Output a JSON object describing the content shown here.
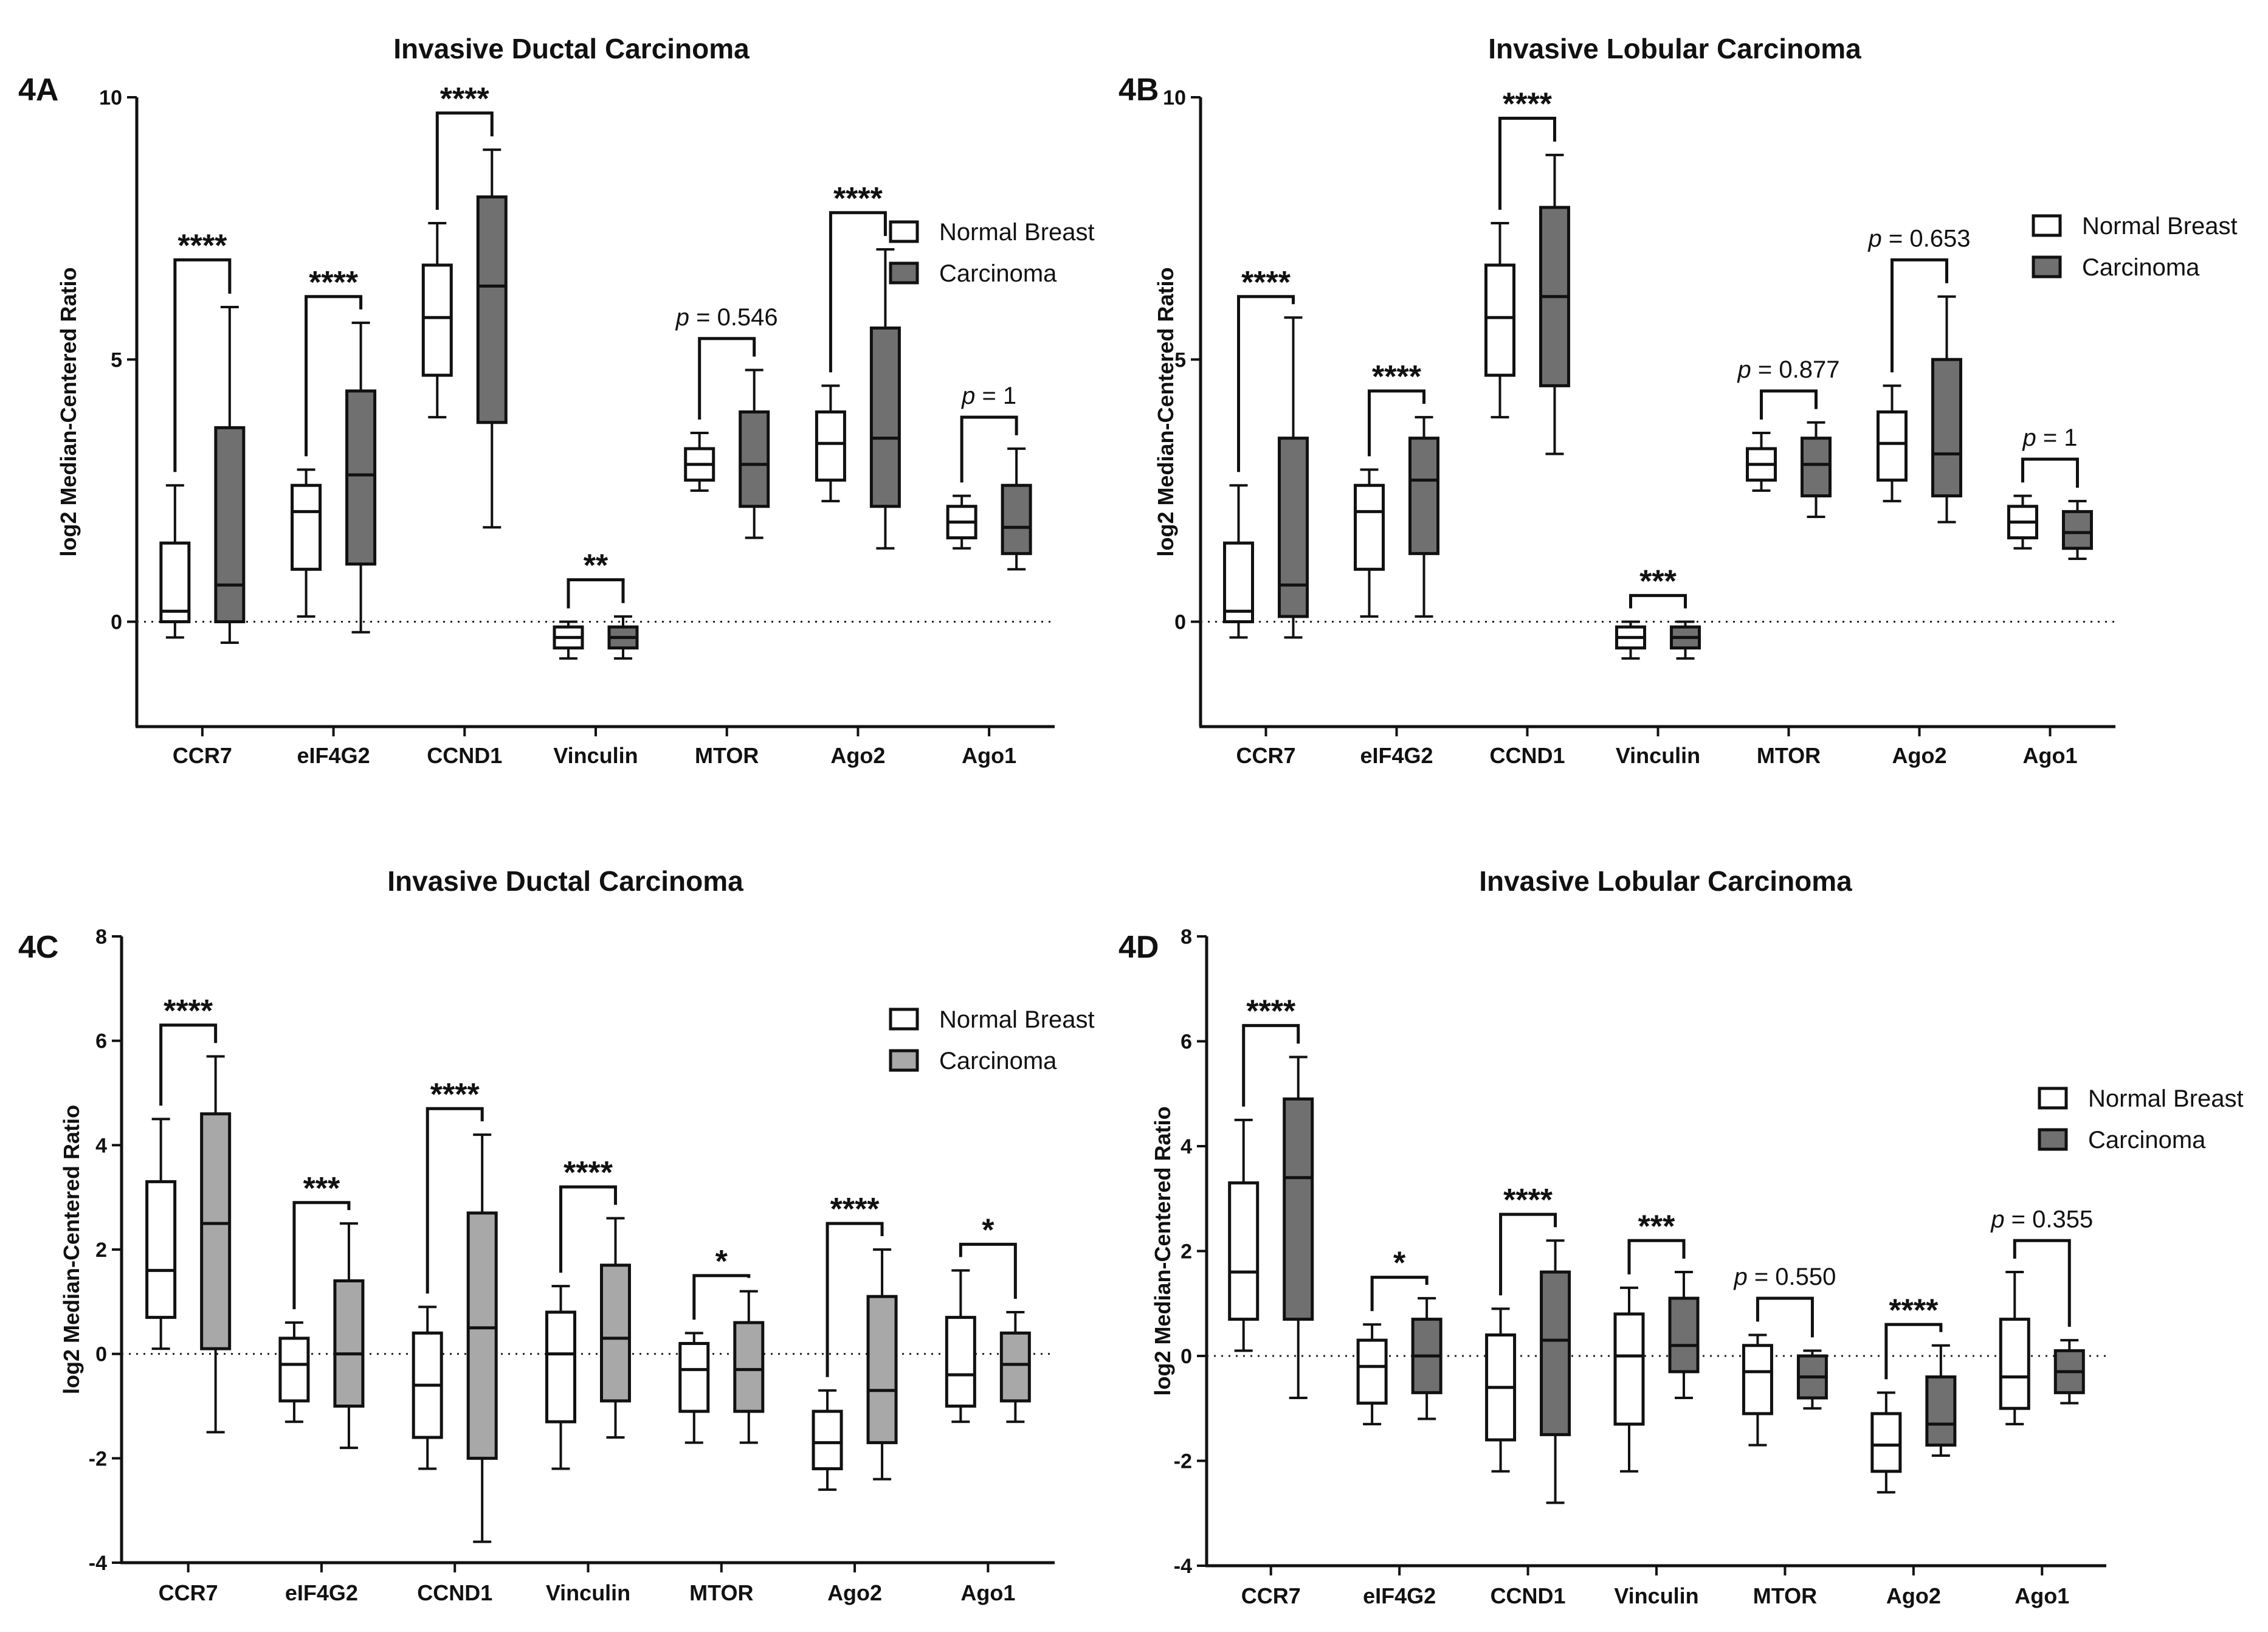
{
  "charts": [
    {
      "id": "4A",
      "label": "4A",
      "chart_data": {
        "type": "box",
        "title": "Invasive Ductal Carcinoma",
        "ylabel": "log2 Median-Centered Ratio",
        "xlabel": "",
        "ylim": [
          -2,
          10
        ],
        "yticks": [
          0,
          5,
          10
        ],
        "zero_line": "dotted",
        "categories": [
          "CCR7",
          "eIF4G2",
          "CCND1",
          "Vinculin",
          "MTOR",
          "Ago2",
          "Ago1"
        ],
        "legend": [
          {
            "name": "Normal Breast",
            "color": "#ffffff"
          },
          {
            "name": "Carcinoma",
            "color": "#707070"
          }
        ],
        "legend_position": "top-right",
        "series": [
          {
            "name": "Normal Breast",
            "color": "#ffffff",
            "boxes": [
              {
                "min": -0.3,
                "q1": 0.0,
                "median": 0.2,
                "q3": 1.5,
                "max": 2.6
              },
              {
                "min": 0.1,
                "q1": 1.0,
                "median": 2.1,
                "q3": 2.6,
                "max": 2.9
              },
              {
                "min": 3.9,
                "q1": 4.7,
                "median": 5.8,
                "q3": 6.8,
                "max": 7.6
              },
              {
                "min": -0.7,
                "q1": -0.5,
                "median": -0.3,
                "q3": -0.1,
                "max": 0.0
              },
              {
                "min": 2.5,
                "q1": 2.7,
                "median": 3.0,
                "q3": 3.3,
                "max": 3.6
              },
              {
                "min": 2.3,
                "q1": 2.7,
                "median": 3.4,
                "q3": 4.0,
                "max": 4.5
              },
              {
                "min": 1.4,
                "q1": 1.6,
                "median": 1.9,
                "q3": 2.2,
                "max": 2.4
              }
            ]
          },
          {
            "name": "Carcinoma",
            "color": "#707070",
            "boxes": [
              {
                "min": -0.4,
                "q1": 0.0,
                "median": 0.7,
                "q3": 3.7,
                "max": 6.0
              },
              {
                "min": -0.2,
                "q1": 1.1,
                "median": 2.8,
                "q3": 4.4,
                "max": 5.7
              },
              {
                "min": 1.8,
                "q1": 3.8,
                "median": 6.4,
                "q3": 8.1,
                "max": 9.0
              },
              {
                "min": -0.7,
                "q1": -0.5,
                "median": -0.3,
                "q3": -0.1,
                "max": 0.1
              },
              {
                "min": 1.6,
                "q1": 2.2,
                "median": 3.0,
                "q3": 4.0,
                "max": 4.8
              },
              {
                "min": 1.4,
                "q1": 2.2,
                "median": 3.5,
                "q3": 5.6,
                "max": 7.1
              },
              {
                "min": 1.0,
                "q1": 1.3,
                "median": 1.8,
                "q3": 2.6,
                "max": 3.3
              }
            ]
          }
        ],
        "annotations": [
          {
            "category": "CCR7",
            "kind": "stars",
            "text": "****",
            "y": 6.9
          },
          {
            "category": "eIF4G2",
            "kind": "stars",
            "text": "****",
            "y": 6.2
          },
          {
            "category": "CCND1",
            "kind": "stars",
            "text": "****",
            "y": 9.7
          },
          {
            "category": "Vinculin",
            "kind": "stars",
            "text": "**",
            "y": 0.8
          },
          {
            "category": "MTOR",
            "kind": "p",
            "prefix": "p",
            "text": " = 0.546",
            "y": 5.4
          },
          {
            "category": "Ago2",
            "kind": "stars",
            "text": "****",
            "y": 7.8
          },
          {
            "category": "Ago1",
            "kind": "p",
            "prefix": "p",
            "text": " = 1",
            "y": 3.9
          }
        ]
      }
    },
    {
      "id": "4B",
      "label": "4B",
      "chart_data": {
        "type": "box",
        "title": "Invasive Lobular Carcinoma",
        "ylabel": "log2 Median-Centered Ratio",
        "xlabel": "",
        "ylim": [
          -2,
          10
        ],
        "yticks": [
          0,
          5,
          10
        ],
        "zero_line": "dotted",
        "categories": [
          "CCR7",
          "eIF4G2",
          "CCND1",
          "Vinculin",
          "MTOR",
          "Ago2",
          "Ago1"
        ],
        "legend": [
          {
            "name": "Normal Breast",
            "color": "#ffffff"
          },
          {
            "name": "Carcinoma",
            "color": "#707070"
          }
        ],
        "legend_position": "top-right",
        "series": [
          {
            "name": "Normal Breast",
            "color": "#ffffff",
            "boxes": [
              {
                "min": -0.3,
                "q1": 0.0,
                "median": 0.2,
                "q3": 1.5,
                "max": 2.6
              },
              {
                "min": 0.1,
                "q1": 1.0,
                "median": 2.1,
                "q3": 2.6,
                "max": 2.9
              },
              {
                "min": 3.9,
                "q1": 4.7,
                "median": 5.8,
                "q3": 6.8,
                "max": 7.6
              },
              {
                "min": -0.7,
                "q1": -0.5,
                "median": -0.3,
                "q3": -0.1,
                "max": 0.0
              },
              {
                "min": 2.5,
                "q1": 2.7,
                "median": 3.0,
                "q3": 3.3,
                "max": 3.6
              },
              {
                "min": 2.3,
                "q1": 2.7,
                "median": 3.4,
                "q3": 4.0,
                "max": 4.5
              },
              {
                "min": 1.4,
                "q1": 1.6,
                "median": 1.9,
                "q3": 2.2,
                "max": 2.4
              }
            ]
          },
          {
            "name": "Carcinoma",
            "color": "#707070",
            "boxes": [
              {
                "min": -0.3,
                "q1": 0.1,
                "median": 0.7,
                "q3": 3.5,
                "max": 5.8
              },
              {
                "min": 0.1,
                "q1": 1.3,
                "median": 2.7,
                "q3": 3.5,
                "max": 3.9
              },
              {
                "min": 3.2,
                "q1": 4.5,
                "median": 6.2,
                "q3": 7.9,
                "max": 8.9
              },
              {
                "min": -0.7,
                "q1": -0.5,
                "median": -0.3,
                "q3": -0.1,
                "max": 0.0
              },
              {
                "min": 2.0,
                "q1": 2.4,
                "median": 3.0,
                "q3": 3.5,
                "max": 3.8
              },
              {
                "min": 1.9,
                "q1": 2.4,
                "median": 3.2,
                "q3": 5.0,
                "max": 6.2
              },
              {
                "min": 1.2,
                "q1": 1.4,
                "median": 1.7,
                "q3": 2.1,
                "max": 2.3
              }
            ]
          }
        ],
        "annotations": [
          {
            "category": "CCR7",
            "kind": "stars",
            "text": "****",
            "y": 6.2
          },
          {
            "category": "eIF4G2",
            "kind": "stars",
            "text": "****",
            "y": 4.4
          },
          {
            "category": "CCND1",
            "kind": "stars",
            "text": "****",
            "y": 9.6
          },
          {
            "category": "Vinculin",
            "kind": "stars",
            "text": "***",
            "y": 0.5
          },
          {
            "category": "MTOR",
            "kind": "p",
            "prefix": "p",
            "text": " = 0.877",
            "y": 4.4
          },
          {
            "category": "Ago2",
            "kind": "p",
            "prefix": "p",
            "text": " = 0.653",
            "y": 6.9
          },
          {
            "category": "Ago1",
            "kind": "p",
            "prefix": "p",
            "text": " = 1",
            "y": 3.1
          }
        ]
      }
    },
    {
      "id": "4C",
      "label": "4C",
      "chart_data": {
        "type": "box",
        "title": "Invasive Ductal Carcinoma",
        "ylabel": "log2 Median-Centered Ratio",
        "xlabel": "",
        "ylim": [
          -4,
          8
        ],
        "yticks": [
          -4,
          -2,
          0,
          2,
          4,
          6,
          8
        ],
        "zero_line": "dotted",
        "categories": [
          "CCR7",
          "eIF4G2",
          "CCND1",
          "Vinculin",
          "MTOR",
          "Ago2",
          "Ago1"
        ],
        "legend": [
          {
            "name": "Normal Breast",
            "color": "#ffffff"
          },
          {
            "name": "Carcinoma",
            "color": "#a8a8a8"
          }
        ],
        "legend_position": "top-right",
        "series": [
          {
            "name": "Normal Breast",
            "color": "#ffffff",
            "boxes": [
              {
                "min": 0.1,
                "q1": 0.7,
                "median": 1.6,
                "q3": 3.3,
                "max": 4.5
              },
              {
                "min": -1.3,
                "q1": -0.9,
                "median": -0.2,
                "q3": 0.3,
                "max": 0.6
              },
              {
                "min": -2.2,
                "q1": -1.6,
                "median": -0.6,
                "q3": 0.4,
                "max": 0.9
              },
              {
                "min": -2.2,
                "q1": -1.3,
                "median": 0.0,
                "q3": 0.8,
                "max": 1.3
              },
              {
                "min": -1.7,
                "q1": -1.1,
                "median": -0.3,
                "q3": 0.2,
                "max": 0.4
              },
              {
                "min": -2.6,
                "q1": -2.2,
                "median": -1.7,
                "q3": -1.1,
                "max": -0.7
              },
              {
                "min": -1.3,
                "q1": -1.0,
                "median": -0.4,
                "q3": 0.7,
                "max": 1.6
              }
            ]
          },
          {
            "name": "Carcinoma",
            "color": "#a8a8a8",
            "boxes": [
              {
                "min": -1.5,
                "q1": 0.1,
                "median": 2.5,
                "q3": 4.6,
                "max": 5.7
              },
              {
                "min": -1.8,
                "q1": -1.0,
                "median": 0.0,
                "q3": 1.4,
                "max": 2.5
              },
              {
                "min": -3.6,
                "q1": -2.0,
                "median": 0.5,
                "q3": 2.7,
                "max": 4.2
              },
              {
                "min": -1.6,
                "q1": -0.9,
                "median": 0.3,
                "q3": 1.7,
                "max": 2.6
              },
              {
                "min": -1.7,
                "q1": -1.1,
                "median": -0.3,
                "q3": 0.6,
                "max": 1.2
              },
              {
                "min": -2.4,
                "q1": -1.7,
                "median": -0.7,
                "q3": 1.1,
                "max": 2.0
              },
              {
                "min": -1.3,
                "q1": -0.9,
                "median": -0.2,
                "q3": 0.4,
                "max": 0.8
              }
            ]
          }
        ],
        "annotations": [
          {
            "category": "CCR7",
            "kind": "stars",
            "text": "****",
            "y": 6.3
          },
          {
            "category": "eIF4G2",
            "kind": "stars",
            "text": "***",
            "y": 2.9
          },
          {
            "category": "CCND1",
            "kind": "stars",
            "text": "****",
            "y": 4.7
          },
          {
            "category": "Vinculin",
            "kind": "stars",
            "text": "****",
            "y": 3.2
          },
          {
            "category": "MTOR",
            "kind": "stars",
            "text": "*",
            "y": 1.5
          },
          {
            "category": "Ago2",
            "kind": "stars",
            "text": "****",
            "y": 2.5
          },
          {
            "category": "Ago1",
            "kind": "stars",
            "text": "*",
            "y": 2.1
          }
        ]
      }
    },
    {
      "id": "4D",
      "label": "4D",
      "chart_data": {
        "type": "box",
        "title": "Invasive Lobular Carcinoma",
        "ylabel": "log2 Median-Centered Ratio",
        "xlabel": "",
        "ylim": [
          -4,
          8
        ],
        "yticks": [
          -4,
          -2,
          0,
          2,
          4,
          6,
          8
        ],
        "zero_line": "dotted",
        "categories": [
          "CCR7",
          "eIF4G2",
          "CCND1",
          "Vinculin",
          "MTOR",
          "Ago2",
          "Ago1"
        ],
        "legend": [
          {
            "name": "Normal Breast",
            "color": "#ffffff"
          },
          {
            "name": "Carcinoma",
            "color": "#707070"
          }
        ],
        "legend_position": "top-right",
        "series": [
          {
            "name": "Normal Breast",
            "color": "#ffffff",
            "boxes": [
              {
                "min": 0.1,
                "q1": 0.7,
                "median": 1.6,
                "q3": 3.3,
                "max": 4.5
              },
              {
                "min": -1.3,
                "q1": -0.9,
                "median": -0.2,
                "q3": 0.3,
                "max": 0.6
              },
              {
                "min": -2.2,
                "q1": -1.6,
                "median": -0.6,
                "q3": 0.4,
                "max": 0.9
              },
              {
                "min": -2.2,
                "q1": -1.3,
                "median": 0.0,
                "q3": 0.8,
                "max": 1.3
              },
              {
                "min": -1.7,
                "q1": -1.1,
                "median": -0.3,
                "q3": 0.2,
                "max": 0.4
              },
              {
                "min": -2.6,
                "q1": -2.2,
                "median": -1.7,
                "q3": -1.1,
                "max": -0.7
              },
              {
                "min": -1.3,
                "q1": -1.0,
                "median": -0.4,
                "q3": 0.7,
                "max": 1.6
              }
            ]
          },
          {
            "name": "Carcinoma",
            "color": "#707070",
            "boxes": [
              {
                "min": -0.8,
                "q1": 0.7,
                "median": 3.4,
                "q3": 4.9,
                "max": 5.7
              },
              {
                "min": -1.2,
                "q1": -0.7,
                "median": 0.0,
                "q3": 0.7,
                "max": 1.1
              },
              {
                "min": -2.8,
                "q1": -1.5,
                "median": 0.3,
                "q3": 1.6,
                "max": 2.2
              },
              {
                "min": -0.8,
                "q1": -0.3,
                "median": 0.2,
                "q3": 1.1,
                "max": 1.6
              },
              {
                "min": -1.0,
                "q1": -0.8,
                "median": -0.4,
                "q3": 0.0,
                "max": 0.1
              },
              {
                "min": -1.9,
                "q1": -1.7,
                "median": -1.3,
                "q3": -0.4,
                "max": 0.2
              },
              {
                "min": -0.9,
                "q1": -0.7,
                "median": -0.3,
                "q3": 0.1,
                "max": 0.3
              }
            ]
          }
        ],
        "annotations": [
          {
            "category": "CCR7",
            "kind": "stars",
            "text": "****",
            "y": 6.3
          },
          {
            "category": "eIF4G2",
            "kind": "stars",
            "text": "*",
            "y": 1.5
          },
          {
            "category": "CCND1",
            "kind": "stars",
            "text": "****",
            "y": 2.7
          },
          {
            "category": "Vinculin",
            "kind": "stars",
            "text": "***",
            "y": 2.2
          },
          {
            "category": "MTOR",
            "kind": "p",
            "prefix": "p",
            "text": " = 0.550",
            "y": 1.1
          },
          {
            "category": "Ago2",
            "kind": "stars",
            "text": "****",
            "y": 0.6
          },
          {
            "category": "Ago1",
            "kind": "p",
            "prefix": "p",
            "text": " = 0.355",
            "y": 2.2
          }
        ]
      }
    }
  ]
}
